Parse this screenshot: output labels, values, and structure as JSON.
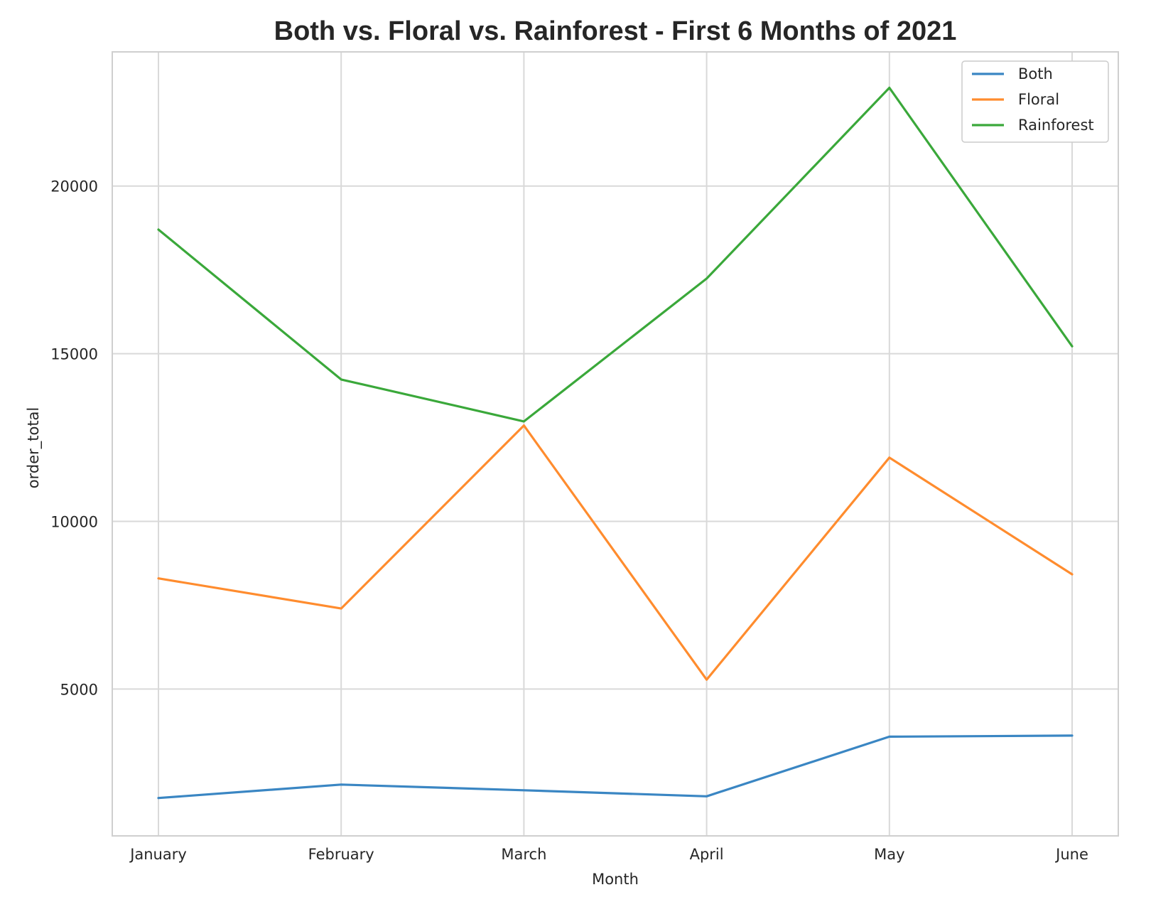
{
  "chart_data": {
    "type": "line",
    "title": "Both vs. Floral vs. Rainforest - First 6 Months of 2021",
    "xlabel": "Month",
    "ylabel": "order_total",
    "categories": [
      "January",
      "February",
      "March",
      "April",
      "May",
      "June"
    ],
    "yticks": [
      5000,
      10000,
      15000,
      20000
    ],
    "ytick_labels": [
      "5000",
      "10000",
      "15000",
      "20000"
    ],
    "ylim": [
      620,
      24000
    ],
    "grid": true,
    "legend_position": "top-right",
    "series": [
      {
        "name": "Both",
        "color": "#3a86c3",
        "values": [
          1750,
          2150,
          1980,
          1800,
          3580,
          3610
        ]
      },
      {
        "name": "Floral",
        "color": "#ff8c2e",
        "values": [
          8300,
          7400,
          12860,
          5280,
          11900,
          8420
        ]
      },
      {
        "name": "Rainforest",
        "color": "#3aa83a",
        "values": [
          18700,
          14230,
          12980,
          17240,
          22930,
          15220
        ]
      }
    ]
  }
}
